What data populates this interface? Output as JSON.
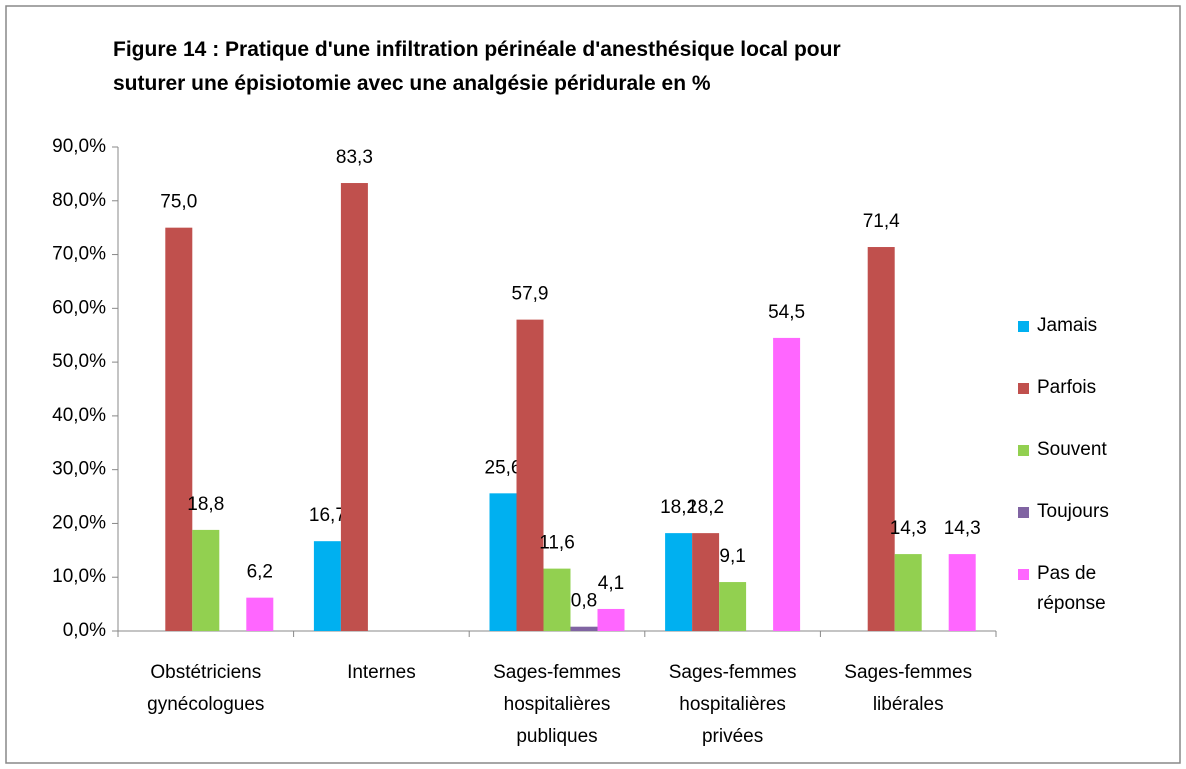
{
  "chart_data": {
    "type": "bar",
    "title": [
      "Figure 14 : Pratique d'une infiltration périnéale d'anesthésique local pour",
      "suturer une épisiotomie avec une analgésie péridurale en %"
    ],
    "categories": [
      [
        "Obstétriciens",
        "gynécologues"
      ],
      [
        "Internes"
      ],
      [
        "Sages-femmes",
        "hospitalières",
        "publiques"
      ],
      [
        "Sages-femmes",
        "hospitalières",
        "privées"
      ],
      [
        "Sages-femmes",
        "libérales"
      ]
    ],
    "series": [
      {
        "name": "Jamais",
        "color": "#00b0f0",
        "values": [
          null,
          16.7,
          25.6,
          18.2,
          null
        ],
        "value_labels": [
          null,
          "16,7",
          "25,6",
          "18,2",
          null
        ]
      },
      {
        "name": "Parfois",
        "color": "#c0504d",
        "values": [
          75.0,
          83.3,
          57.9,
          18.2,
          71.4
        ],
        "value_labels": [
          "75,0",
          "83,3",
          "57,9",
          "18,2",
          "71,4"
        ]
      },
      {
        "name": "Souvent",
        "color": "#92d050",
        "values": [
          18.8,
          null,
          11.6,
          9.1,
          14.3
        ],
        "value_labels": [
          "18,8",
          null,
          "11,6",
          "9,1",
          "14,3"
        ]
      },
      {
        "name": "Toujours",
        "color": "#8064a2",
        "values": [
          null,
          null,
          0.8,
          null,
          null
        ],
        "value_labels": [
          null,
          null,
          "0,8",
          null,
          null
        ]
      },
      {
        "name": "Pas de réponse",
        "color": "#ff66ff",
        "values": [
          6.2,
          null,
          4.1,
          54.5,
          14.3
        ],
        "value_labels": [
          "6,2",
          null,
          "4,1",
          "54,5",
          "14,3"
        ]
      }
    ],
    "ylim": [
      0,
      90
    ],
    "yticks": [
      {
        "value": 0,
        "label": "0,0%"
      },
      {
        "value": 10,
        "label": "10,0%"
      },
      {
        "value": 20,
        "label": "20,0%"
      },
      {
        "value": 30,
        "label": "30,0%"
      },
      {
        "value": 40,
        "label": "40,0%"
      },
      {
        "value": 50,
        "label": "50,0%"
      },
      {
        "value": 60,
        "label": "60,0%"
      },
      {
        "value": 70,
        "label": "70,0%"
      },
      {
        "value": 80,
        "label": "80,0%"
      },
      {
        "value": 90,
        "label": "90,0%"
      }
    ],
    "legend": "right"
  }
}
